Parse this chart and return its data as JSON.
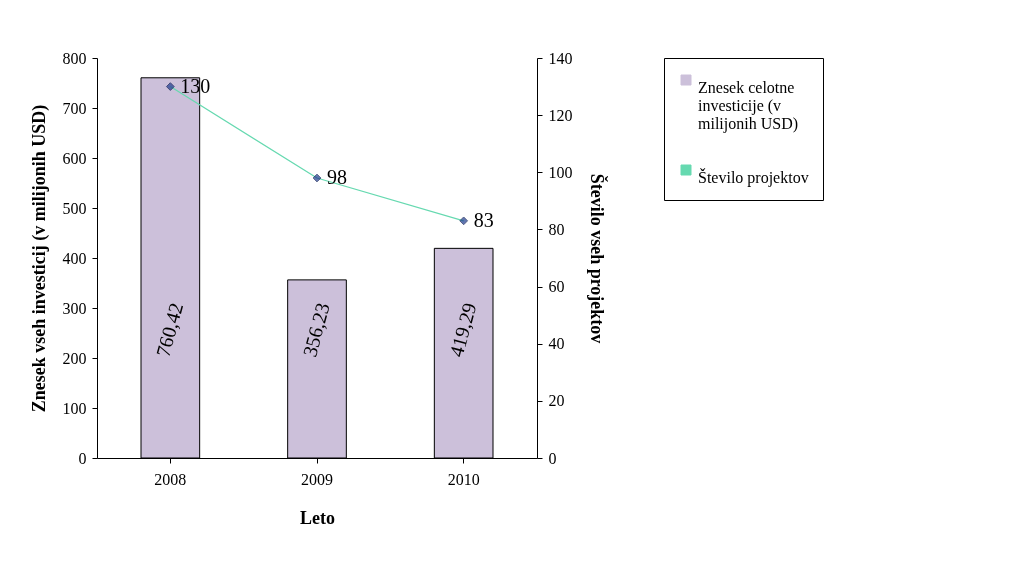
{
  "chart_data": {
    "type": "bar",
    "categories": [
      "2008",
      "2009",
      "2010"
    ],
    "xlabel": "Leto",
    "ylabel": "Znesek vseh investicij (v milijonih USD)",
    "y2label": "Število vseh projektov",
    "series": [
      {
        "name": "Znesek celotne investicije (v milijonih USD)",
        "color": "#ccc0da",
        "values": [
          760.42,
          356.23,
          419.29
        ],
        "value_labels": [
          "760,42",
          "356,23",
          "419,29"
        ]
      },
      {
        "name": "Število projektov",
        "type": "line",
        "axis": "y2",
        "color": "#66d9b0",
        "colors": [
          "#1f3b8f",
          "#1f3b8f",
          "#1f3b8f"
        ],
        "marker": "diamond",
        "values": [
          130,
          98,
          83
        ],
        "value_labels": [
          "130",
          "98",
          "83"
        ]
      }
    ],
    "ylim": [
      0,
      800
    ],
    "yticks": [
      0,
      100,
      200,
      300,
      400,
      500,
      600,
      700,
      800
    ],
    "y2lim": [
      0,
      140
    ],
    "y2ticks": [
      0,
      20,
      40,
      60,
      80,
      100,
      120,
      140
    ],
    "grid": false,
    "legend": "right"
  }
}
